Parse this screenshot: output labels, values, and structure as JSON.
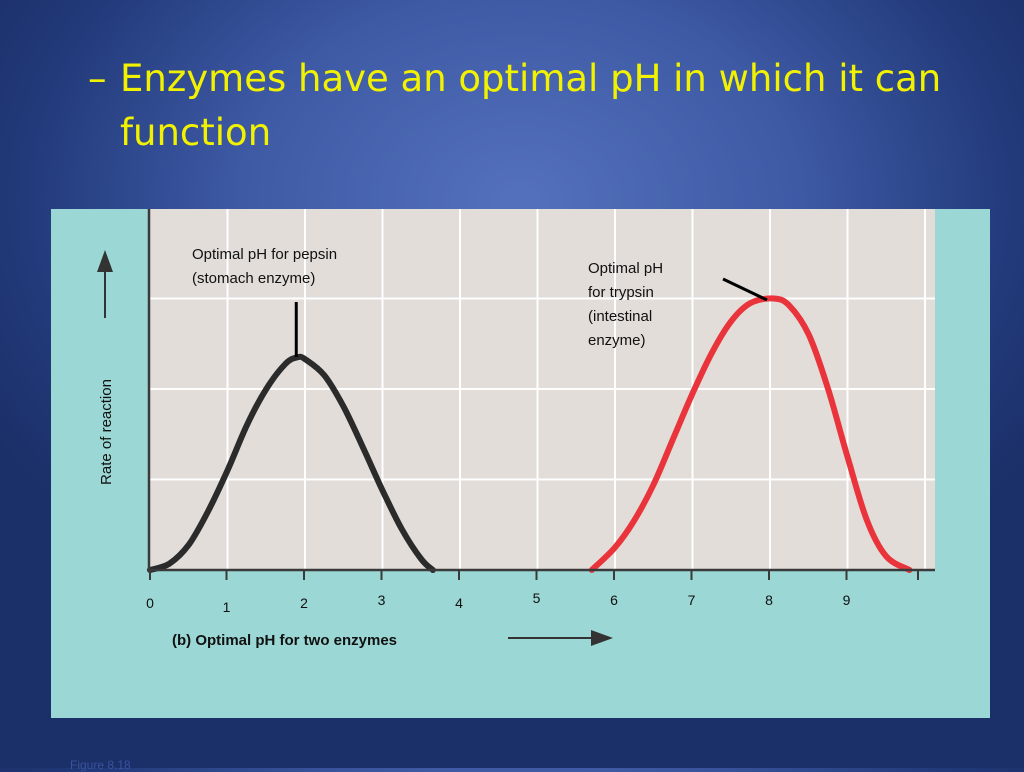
{
  "slide": {
    "bullet_dash": "–",
    "bullet_text": "Enzymes have an optimal pH in which it can function",
    "footer": "Figure 8.18"
  },
  "colors": {
    "background": "#3e5aa5",
    "title": "#f2f200",
    "panel": "#9bd7d4",
    "plot_area": "#e2ddd9",
    "pepsin_curve": "#2b2b2b",
    "trypsin_curve": "#e8343a"
  },
  "chart_data": {
    "type": "line",
    "xlabel": "(b) Optimal pH for two enzymes",
    "ylabel": "Rate of reaction",
    "xlim": [
      0,
      10
    ],
    "ylim": [
      0,
      4
    ],
    "x_ticks": [
      "0",
      "1",
      "2",
      "3",
      "4",
      "5",
      "6",
      "7",
      "8",
      "9"
    ],
    "grid": true,
    "series": [
      {
        "name": "pepsin",
        "color": "#2b2b2b",
        "peak_x": 1.9,
        "peak_y": 2.35,
        "x": [
          0,
          0.25,
          0.5,
          0.75,
          1.0,
          1.25,
          1.5,
          1.75,
          1.9,
          2.0,
          2.25,
          2.5,
          2.75,
          3.0,
          3.25,
          3.5,
          3.65
        ],
        "y": [
          0,
          0.07,
          0.28,
          0.65,
          1.1,
          1.6,
          2.0,
          2.28,
          2.35,
          2.33,
          2.15,
          1.8,
          1.35,
          0.88,
          0.45,
          0.12,
          0
        ]
      },
      {
        "name": "trypsin",
        "color": "#e8343a",
        "peak_x": 8.05,
        "peak_y": 3.0,
        "x": [
          5.7,
          6.0,
          6.25,
          6.5,
          6.75,
          7.0,
          7.25,
          7.5,
          7.75,
          8.05,
          8.25,
          8.5,
          8.75,
          9.0,
          9.25,
          9.5,
          9.8
        ],
        "y": [
          0,
          0.25,
          0.55,
          0.95,
          1.45,
          1.95,
          2.4,
          2.75,
          2.95,
          3.0,
          2.92,
          2.6,
          2.0,
          1.25,
          0.55,
          0.15,
          0
        ]
      }
    ],
    "annotations": [
      {
        "lines": [
          "Optimal pH for pepsin",
          "(stomach enzyme)"
        ],
        "target": "pepsin"
      },
      {
        "lines": [
          "Optimal pH",
          "for trypsin",
          "(intestinal",
          "enzyme)"
        ],
        "target": "trypsin"
      }
    ]
  }
}
